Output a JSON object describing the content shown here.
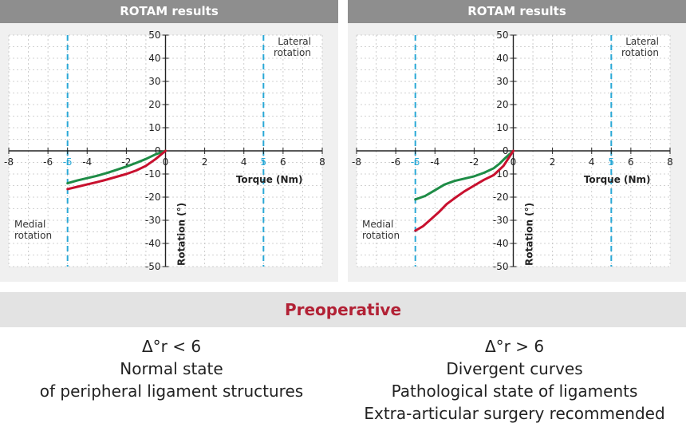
{
  "chart_data": [
    {
      "type": "line",
      "title": "ROTAM results",
      "xlabel": "Torque (Nm)",
      "ylabel": "Rotation (°)",
      "xlim": [
        -8,
        8
      ],
      "ylim": [
        -50,
        50
      ],
      "x_ticks": [
        -8,
        -6,
        -5,
        -4,
        -2,
        0,
        2,
        4,
        5,
        6,
        8
      ],
      "y_ticks": [
        50,
        40,
        30,
        20,
        10,
        0,
        -10,
        -20,
        -30,
        -40,
        -50
      ],
      "grid": true,
      "colors": {
        "green": "#1e8c46",
        "red": "#c8102e",
        "marker": "#29a8d6"
      },
      "reference_lines": [
        {
          "x": -5,
          "label": "-5"
        },
        {
          "x": 5,
          "label": "5"
        }
      ],
      "annotations": {
        "lateral": "Lateral\nrotation",
        "medial": "Medial\nrotation"
      },
      "series": [
        {
          "color": "green",
          "x": [
            -5,
            -4.5,
            -4,
            -3.5,
            -3,
            -2.5,
            -2,
            -1.5,
            -1,
            -0.5,
            0
          ],
          "y": [
            -14,
            -12.8,
            -11.8,
            -10.8,
            -9.6,
            -8.2,
            -6.8,
            -5.2,
            -3.5,
            -1.5,
            0
          ]
        },
        {
          "color": "red",
          "x": [
            -5,
            -4.5,
            -4,
            -3.5,
            -3,
            -2.5,
            -2,
            -1.5,
            -1,
            -0.5,
            0
          ],
          "y": [
            -16.5,
            -15.5,
            -14.5,
            -13.5,
            -12.4,
            -11.2,
            -10,
            -8.5,
            -6.5,
            -3.5,
            0
          ]
        }
      ]
    },
    {
      "type": "line",
      "title": "ROTAM results",
      "xlabel": "Torque (Nm)",
      "ylabel": "Rotation (°)",
      "xlim": [
        -8,
        8
      ],
      "ylim": [
        -50,
        50
      ],
      "x_ticks": [
        -8,
        -6,
        -5,
        -4,
        -2,
        0,
        2,
        4,
        5,
        6,
        8
      ],
      "y_ticks": [
        50,
        40,
        30,
        20,
        10,
        0,
        -10,
        -20,
        -30,
        -40,
        -50
      ],
      "grid": true,
      "colors": {
        "green": "#1e8c46",
        "red": "#c8102e",
        "marker": "#29a8d6"
      },
      "reference_lines": [
        {
          "x": -5,
          "label": "-5"
        },
        {
          "x": 5,
          "label": "5"
        }
      ],
      "annotations": {
        "lateral": "Lateral\nrotation",
        "medial": "Medial\nrotation"
      },
      "series": [
        {
          "color": "green",
          "x": [
            -5,
            -4.5,
            -4,
            -3.5,
            -3,
            -2.5,
            -2,
            -1.5,
            -1,
            -0.7,
            -0.4,
            0
          ],
          "y": [
            -21,
            -19.5,
            -17,
            -14.5,
            -13,
            -12,
            -11,
            -9.5,
            -7.5,
            -5.5,
            -3,
            0
          ]
        },
        {
          "color": "red",
          "x": [
            -5,
            -4.6,
            -4.2,
            -3.8,
            -3.4,
            -3,
            -2.5,
            -2,
            -1.5,
            -1,
            -0.5,
            0
          ],
          "y": [
            -34.5,
            -32.5,
            -29.5,
            -26.5,
            -23,
            -20.5,
            -17.5,
            -15,
            -12.5,
            -10.5,
            -6.5,
            0
          ]
        }
      ]
    }
  ],
  "banner": {
    "title": "Preoperative"
  },
  "captions": {
    "left": [
      "Δ°r < 6",
      "Normal state",
      "of peripheral ligament structures"
    ],
    "right": [
      "Δ°r > 6",
      "Divergent curves",
      "Pathological state of ligaments",
      "Extra-articular surgery recommended"
    ]
  }
}
